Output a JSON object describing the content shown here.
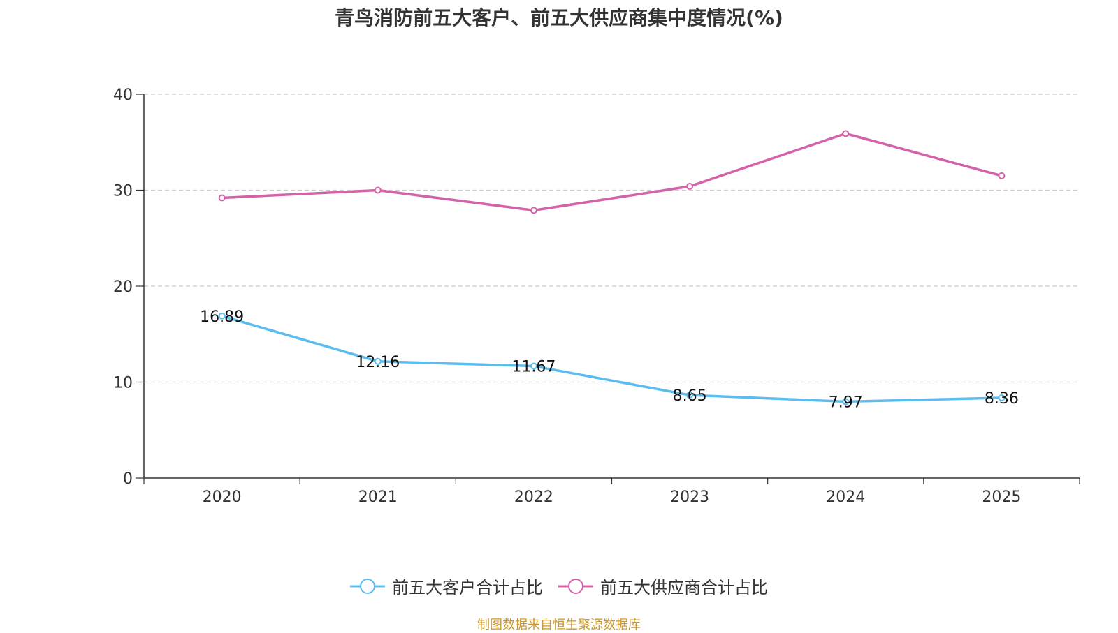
{
  "chart_data": {
    "type": "line",
    "title": "青鸟消防前五大客户、前五大供应商集中度情况(%)",
    "categories": [
      "2020",
      "2021",
      "2022",
      "2023",
      "2024",
      "2025"
    ],
    "ylim": [
      0,
      40
    ],
    "yticks": [
      0,
      10,
      20,
      30,
      40
    ],
    "grid": true,
    "legend_position": "bottom",
    "series": [
      {
        "name": "前五大客户合计占比",
        "color": "#5bbcef",
        "values": [
          16.89,
          12.16,
          11.67,
          8.65,
          7.97,
          8.36
        ],
        "labels": [
          "16.89",
          "12.16",
          "11.67",
          "8.65",
          "7.97",
          "8.36"
        ]
      },
      {
        "name": "前五大供应商合计占比",
        "color": "#d462a8",
        "values": [
          29.2,
          30.0,
          27.9,
          30.4,
          35.9,
          31.5
        ]
      }
    ],
    "source": "制图数据来自恒生聚源数据库"
  }
}
